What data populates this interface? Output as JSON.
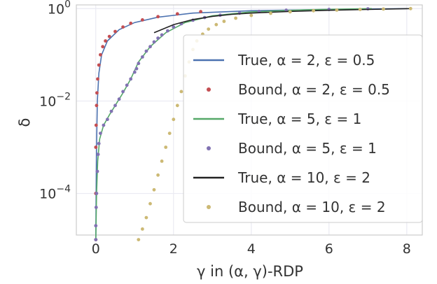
{
  "chart_data": {
    "type": "line",
    "xlabel": "γ in (α, γ)-RDP",
    "ylabel": "δ",
    "xlim": [
      -0.5,
      8.4
    ],
    "ylim_log10": [
      -4.9,
      0.08
    ],
    "yscale": "log",
    "grid": true,
    "legend_position": "center-right",
    "x_ticks": [
      0,
      2,
      4,
      6,
      8
    ],
    "y_ticks": [
      {
        "value": 1,
        "base": "10",
        "exp": "0"
      },
      {
        "value": 0.01,
        "base": "10",
        "exp": "−2"
      },
      {
        "value": 0.0001,
        "base": "10",
        "exp": "−4"
      }
    ],
    "series": [
      {
        "name": "True, α = 2, ε = 0.5",
        "kind": "line",
        "color": "#4c72b0",
        "points": [
          [
            0.0,
            1e-05
          ],
          [
            0.01,
            0.0001
          ],
          [
            0.02,
            0.001
          ],
          [
            0.04,
            0.01
          ],
          [
            0.08,
            0.04
          ],
          [
            0.15,
            0.1
          ],
          [
            0.3,
            0.2
          ],
          [
            0.6,
            0.35
          ],
          [
            1.0,
            0.5
          ],
          [
            1.6,
            0.65
          ],
          [
            2.5,
            0.8
          ],
          [
            4,
            0.9
          ],
          [
            6,
            0.96
          ],
          [
            8,
            1.0
          ]
        ]
      },
      {
        "name": "Bound, α = 2, ε = 0.5",
        "kind": "scatter",
        "color": "#c44e52",
        "points": [
          [
            0.0,
            1e-05
          ],
          [
            0.0,
            0.0001
          ],
          [
            0.0,
            0.001
          ],
          [
            0.01,
            0.003
          ],
          [
            0.02,
            0.008
          ],
          [
            0.03,
            0.015
          ],
          [
            0.05,
            0.03
          ],
          [
            0.08,
            0.06
          ],
          [
            0.12,
            0.1
          ],
          [
            0.18,
            0.15
          ],
          [
            0.25,
            0.2
          ],
          [
            0.35,
            0.25
          ],
          [
            0.5,
            0.32
          ],
          [
            0.7,
            0.4
          ],
          [
            0.9,
            0.48
          ],
          [
            1.2,
            0.57
          ],
          [
            1.6,
            0.67
          ],
          [
            2.1,
            0.77
          ],
          [
            2.7,
            0.86
          ]
        ]
      },
      {
        "name": "True, α = 5, ε = 1",
        "kind": "line",
        "color": "#55a868",
        "points": [
          [
            0.0,
            1e-05
          ],
          [
            0.02,
            0.0001
          ],
          [
            0.05,
            0.0005
          ],
          [
            0.1,
            0.0015
          ],
          [
            0.2,
            0.003
          ],
          [
            0.35,
            0.005
          ],
          [
            0.5,
            0.008
          ],
          [
            0.7,
            0.015
          ],
          [
            0.9,
            0.03
          ],
          [
            1.1,
            0.07
          ],
          [
            1.4,
            0.15
          ],
          [
            1.8,
            0.3
          ],
          [
            2.3,
            0.5
          ],
          [
            3,
            0.7
          ],
          [
            4,
            0.85
          ],
          [
            5.5,
            0.95
          ],
          [
            7.1,
            1.0
          ]
        ]
      },
      {
        "name": "Bound, α = 5, ε = 1",
        "kind": "scatter",
        "color": "#8172b2",
        "points": [
          [
            0.0,
            1e-05
          ],
          [
            0.0,
            2e-05
          ],
          [
            0.01,
            5e-05
          ],
          [
            0.02,
            0.0001
          ],
          [
            0.04,
            0.0003
          ],
          [
            0.06,
            0.0007
          ],
          [
            0.08,
            0.0012
          ],
          [
            0.12,
            0.002
          ],
          [
            0.2,
            0.003
          ],
          [
            0.3,
            0.004
          ],
          [
            0.4,
            0.006
          ],
          [
            0.5,
            0.008
          ],
          [
            0.6,
            0.011
          ],
          [
            0.7,
            0.016
          ],
          [
            0.8,
            0.022
          ],
          [
            0.9,
            0.03
          ],
          [
            1.0,
            0.042
          ],
          [
            1.05,
            0.05
          ],
          [
            1.1,
            0.065
          ],
          [
            1.2,
            0.09
          ],
          [
            1.3,
            0.12
          ],
          [
            1.4,
            0.15
          ],
          [
            1.5,
            0.19
          ],
          [
            1.6,
            0.23
          ],
          [
            1.7,
            0.27
          ],
          [
            1.85,
            0.33
          ],
          [
            2.0,
            0.4
          ],
          [
            2.2,
            0.47
          ],
          [
            2.5,
            0.56
          ],
          [
            2.8,
            0.64
          ],
          [
            3.2,
            0.72
          ],
          [
            3.7,
            0.8
          ],
          [
            4.2,
            0.87
          ],
          [
            4.9,
            0.92
          ],
          [
            6.0,
            0.96
          ],
          [
            7.0,
            0.99
          ]
        ]
      },
      {
        "name": "True, α = 10, ε = 2",
        "kind": "line",
        "color": "#222222",
        "points": [
          [
            1.5,
            0.3
          ],
          [
            2.0,
            0.45
          ],
          [
            2.5,
            0.58
          ],
          [
            3.0,
            0.68
          ],
          [
            3.5,
            0.75
          ],
          [
            4.0,
            0.8
          ],
          [
            5.0,
            0.87
          ],
          [
            6.0,
            0.92
          ],
          [
            7.0,
            0.96
          ],
          [
            8.1,
            1.0
          ]
        ]
      },
      {
        "name": "Bound, α = 10, ε = 2",
        "kind": "scatter",
        "color": "#ccb974",
        "points": [
          [
            1.1,
            1e-05
          ],
          [
            1.2,
            1.7e-05
          ],
          [
            1.3,
            3e-05
          ],
          [
            1.4,
            6e-05
          ],
          [
            1.5,
            0.00012
          ],
          [
            1.6,
            0.00025
          ],
          [
            1.7,
            0.0005
          ],
          [
            1.8,
            0.001
          ],
          [
            1.9,
            0.002
          ],
          [
            2.0,
            0.004
          ],
          [
            2.1,
            0.008
          ],
          [
            2.2,
            0.016
          ],
          [
            2.3,
            0.035
          ],
          [
            2.4,
            0.07
          ],
          [
            2.5,
            0.13
          ],
          [
            2.6,
            0.2
          ],
          [
            2.75,
            0.28
          ],
          [
            2.9,
            0.36
          ],
          [
            3.1,
            0.45
          ],
          [
            3.3,
            0.53
          ],
          [
            3.6,
            0.62
          ],
          [
            4.0,
            0.71
          ],
          [
            4.5,
            0.79
          ],
          [
            5.0,
            0.85
          ],
          [
            5.6,
            0.9
          ],
          [
            6.2,
            0.93
          ],
          [
            6.8,
            0.96
          ],
          [
            7.4,
            0.98
          ],
          [
            8.1,
            1.0
          ]
        ]
      }
    ]
  }
}
